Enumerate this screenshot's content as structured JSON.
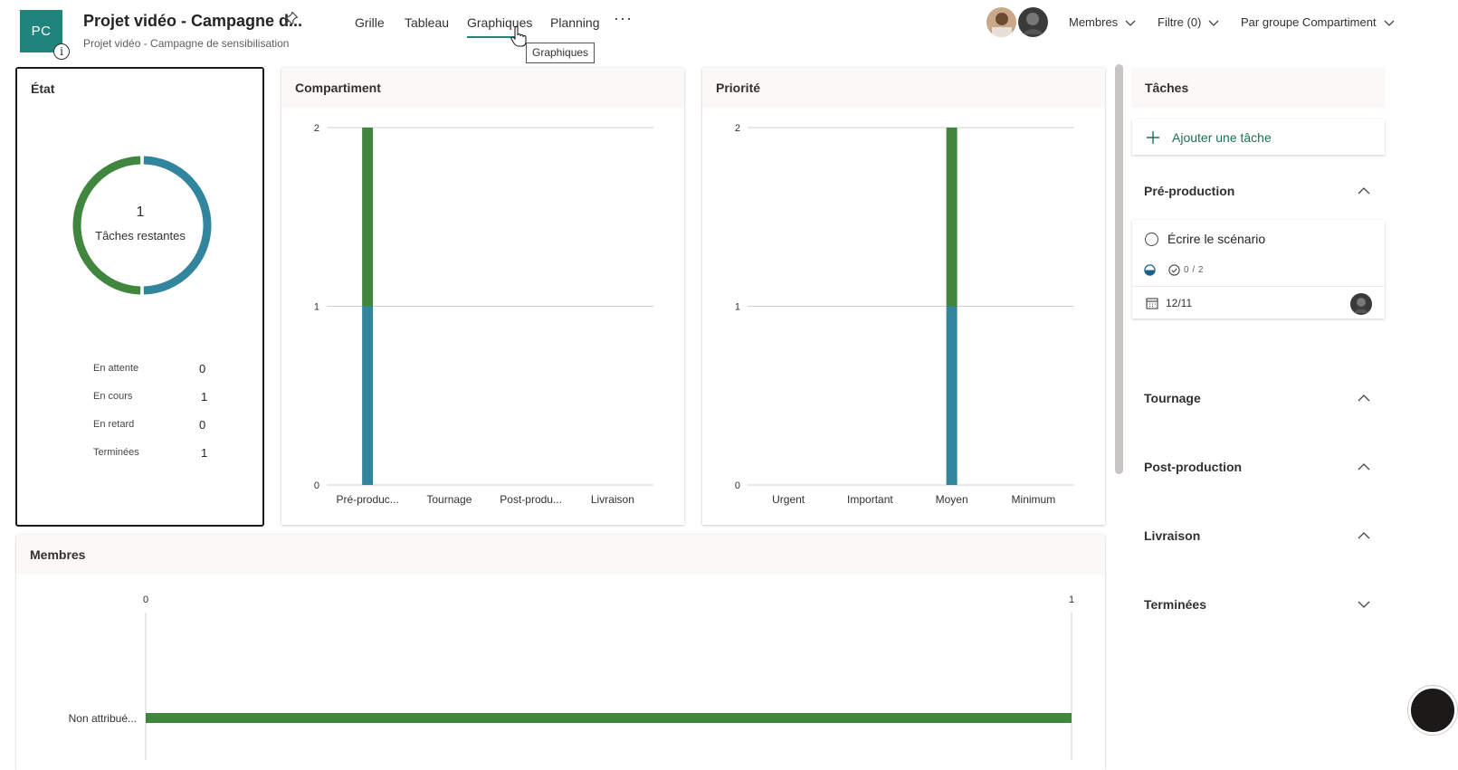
{
  "header": {
    "logo_initials": "PC",
    "info_glyph": "i",
    "plan_title": "Projet vidéo - Campagne d...",
    "plan_subtitle": "Projet vidéo - Campagne de sensibilisation",
    "tabs": [
      {
        "label": "Grille",
        "active": false
      },
      {
        "label": "Tableau",
        "active": false
      },
      {
        "label": "Graphiques",
        "active": true
      },
      {
        "label": "Planning",
        "active": false
      }
    ],
    "more_label": "···",
    "tooltip": "Graphiques",
    "members_label": "Membres",
    "filter_label": "Filtre (0)",
    "group_label": "Par groupe Compartiment",
    "accent_color": "#1f857c"
  },
  "etat": {
    "title": "État",
    "remaining_count": "1",
    "remaining_label": "Tâches restantes",
    "donut": {
      "in_progress": 1,
      "completed": 1
    },
    "stats": [
      {
        "label": "En attente",
        "value": "0"
      },
      {
        "label": "En cours",
        "value": "1"
      },
      {
        "label": "En retard",
        "value": "0"
      },
      {
        "label": "Terminées",
        "value": "1"
      }
    ]
  },
  "chart_data": [
    {
      "type": "bar",
      "title": "Compartiment",
      "categories": [
        "Pré-produc...",
        "Tournage",
        "Post-produ...",
        "Livraison"
      ],
      "series": [
        {
          "color": "#31859c",
          "values": [
            1,
            0,
            0,
            0
          ]
        },
        {
          "color": "#41863f",
          "values": [
            1,
            0,
            0,
            0
          ]
        }
      ],
      "stacked": true,
      "ylim": [
        0,
        2
      ],
      "yticks": [
        "0",
        "1",
        "2"
      ],
      "grid": true
    },
    {
      "type": "bar",
      "title": "Priorité",
      "categories": [
        "Urgent",
        "Important",
        "Moyen",
        "Minimum"
      ],
      "series": [
        {
          "color": "#31859c",
          "values": [
            0,
            0,
            1,
            0
          ]
        },
        {
          "color": "#41863f",
          "values": [
            0,
            0,
            1,
            0
          ]
        }
      ],
      "stacked": true,
      "ylim": [
        0,
        2
      ],
      "yticks": [
        "0",
        "1",
        "2"
      ],
      "grid": true
    },
    {
      "type": "bar",
      "orientation": "horizontal",
      "title": "Membres",
      "categories": [
        "Non attribué..."
      ],
      "series": [
        {
          "color": "#41863f",
          "values": [
            1
          ]
        }
      ],
      "xlim": [
        0,
        1
      ],
      "xticks": [
        "0",
        "1"
      ]
    }
  ],
  "tasks_panel": {
    "title": "Tâches",
    "add_task_label": "Ajouter une tâche",
    "buckets": [
      {
        "name": "Pré-production",
        "expanded": true
      },
      {
        "name": "Tournage",
        "expanded": true
      },
      {
        "name": "Post-production",
        "expanded": true
      },
      {
        "name": "Livraison",
        "expanded": true
      },
      {
        "name": "Terminées",
        "expanded": false
      }
    ],
    "task": {
      "title": "Écrire le scénario",
      "checklist": "0 / 2",
      "due_date": "12/11",
      "progress": "in-progress"
    }
  }
}
